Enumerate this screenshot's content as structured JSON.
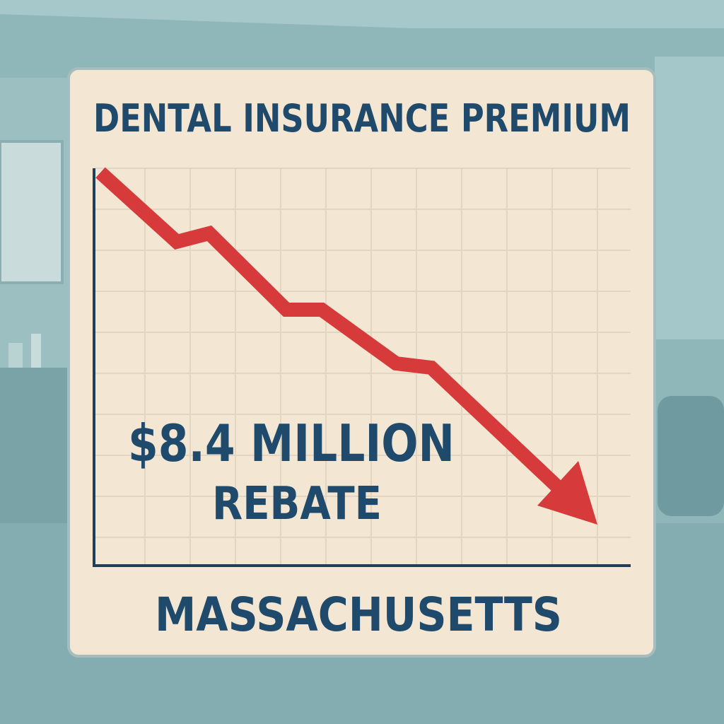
{
  "header": {
    "title": "DENTAL INSURANCE PREMIUM"
  },
  "headline": {
    "amount": "$8.4 MILLION",
    "subject": "REBATE"
  },
  "footer": {
    "location": "MASSACHUSETTS"
  }
}
